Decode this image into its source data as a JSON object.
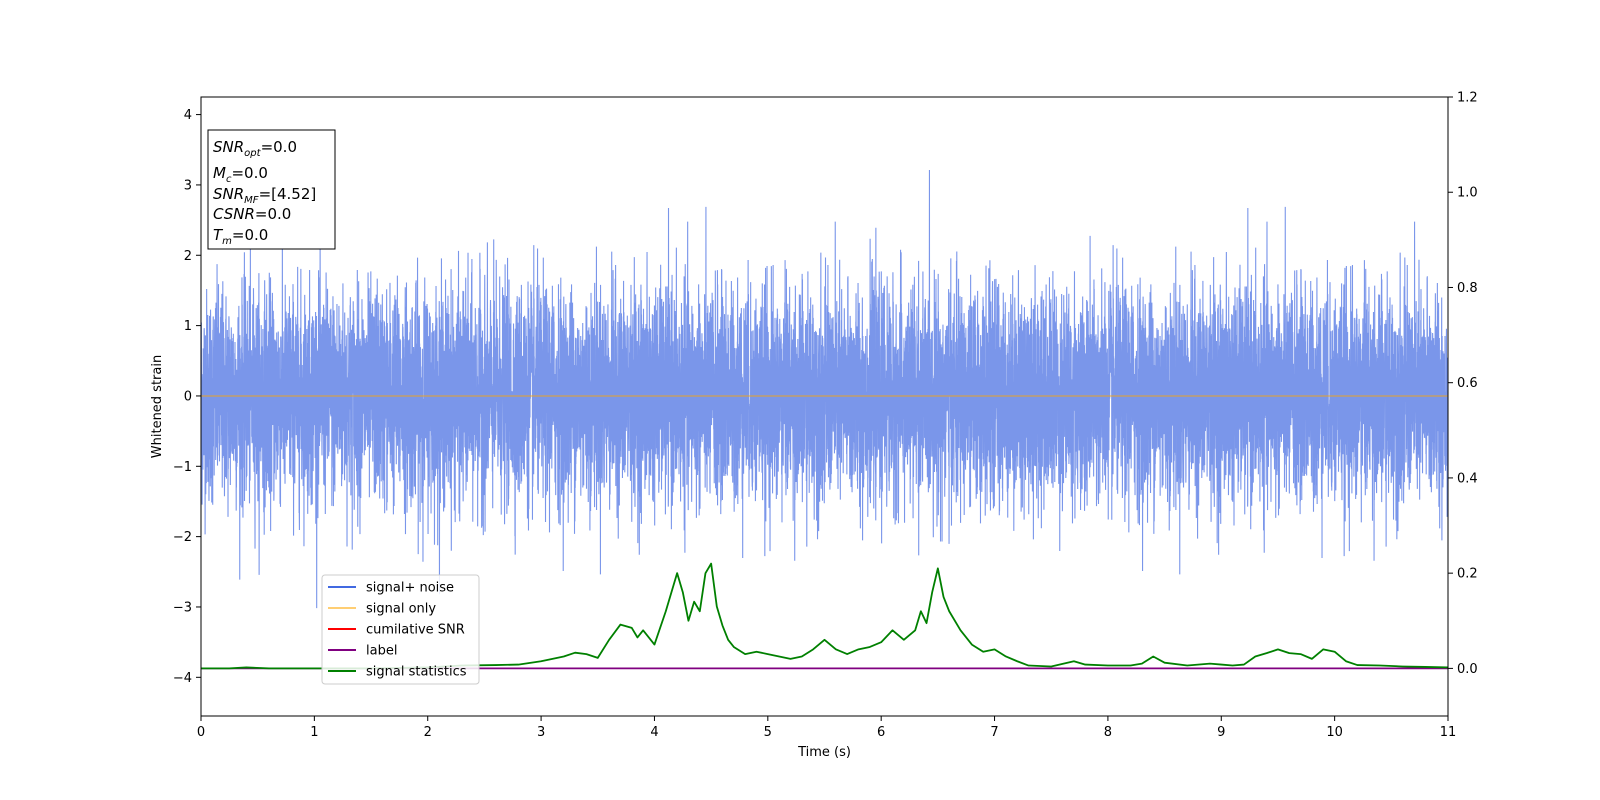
{
  "chart_data": {
    "type": "line",
    "xlabel": "Time (s)",
    "ylabel": "Whitened strain",
    "xlim": [
      0,
      11
    ],
    "ylim": [
      -4.55,
      4.25
    ],
    "y2lim": [
      -0.1,
      1.2
    ],
    "x_ticks": [
      0,
      1,
      2,
      3,
      4,
      5,
      6,
      7,
      8,
      9,
      10,
      11
    ],
    "y_ticks": [
      -4,
      -3,
      -2,
      -1,
      0,
      1,
      2,
      3,
      4
    ],
    "y2_ticks": [
      "0.0",
      "0.2",
      "0.4",
      "0.6",
      "0.8",
      "1.0",
      "1.2"
    ],
    "grid": false,
    "legend_position": "lower-left",
    "info_box": {
      "snr_opt": "=0.0",
      "mc": "=0.0",
      "snr_mf": "=[4.52]",
      "csnr": "=0.0",
      "tm": "=0.0"
    },
    "series": [
      {
        "name": "signal+ noise",
        "color": "#4169e1",
        "axis": "left",
        "style": "noise",
        "noise_std": 0.75,
        "envelope": [
          -3.3,
          3.85
        ],
        "sample_rate_hz": 1024
      },
      {
        "name": "signal only",
        "color": "#ffa500",
        "axis": "left",
        "x": [
          0,
          11
        ],
        "values": [
          0,
          0
        ]
      },
      {
        "name": "cumilative SNR",
        "color": "#ff0000",
        "axis": "right",
        "x": [],
        "values": []
      },
      {
        "name": "label",
        "color": "#800080",
        "axis": "right",
        "x": [
          0,
          11
        ],
        "values": [
          0,
          0
        ]
      },
      {
        "name": "signal statistics",
        "color": "#008000",
        "axis": "right",
        "x": [
          0,
          0.25,
          0.4,
          0.6,
          1.0,
          1.5,
          2.0,
          2.3,
          2.6,
          2.8,
          3.0,
          3.2,
          3.3,
          3.4,
          3.5,
          3.6,
          3.7,
          3.8,
          3.85,
          3.9,
          4.0,
          4.1,
          4.2,
          4.25,
          4.3,
          4.35,
          4.4,
          4.45,
          4.5,
          4.55,
          4.6,
          4.65,
          4.7,
          4.8,
          4.9,
          5.0,
          5.1,
          5.2,
          5.3,
          5.4,
          5.5,
          5.6,
          5.7,
          5.8,
          5.9,
          6.0,
          6.1,
          6.2,
          6.3,
          6.35,
          6.4,
          6.45,
          6.5,
          6.55,
          6.6,
          6.7,
          6.8,
          6.9,
          7.0,
          7.1,
          7.2,
          7.3,
          7.5,
          7.7,
          7.8,
          8.0,
          8.2,
          8.3,
          8.4,
          8.5,
          8.7,
          8.9,
          9.0,
          9.1,
          9.2,
          9.3,
          9.4,
          9.5,
          9.6,
          9.7,
          9.8,
          9.9,
          10.0,
          10.1,
          10.2,
          10.4,
          10.6,
          10.8,
          11.0
        ],
        "values": [
          0.0,
          0.0,
          0.002,
          0.0,
          0.0,
          0.0,
          0.002,
          0.006,
          0.007,
          0.008,
          0.015,
          0.025,
          0.033,
          0.03,
          0.022,
          0.06,
          0.092,
          0.085,
          0.065,
          0.08,
          0.05,
          0.12,
          0.2,
          0.16,
          0.1,
          0.14,
          0.12,
          0.2,
          0.22,
          0.13,
          0.09,
          0.06,
          0.045,
          0.03,
          0.035,
          0.03,
          0.025,
          0.02,
          0.025,
          0.04,
          0.06,
          0.04,
          0.03,
          0.04,
          0.045,
          0.055,
          0.08,
          0.06,
          0.08,
          0.12,
          0.095,
          0.16,
          0.21,
          0.15,
          0.12,
          0.08,
          0.05,
          0.035,
          0.04,
          0.025,
          0.015,
          0.006,
          0.004,
          0.015,
          0.008,
          0.006,
          0.006,
          0.01,
          0.025,
          0.012,
          0.006,
          0.01,
          0.008,
          0.006,
          0.008,
          0.025,
          0.032,
          0.04,
          0.032,
          0.03,
          0.02,
          0.04,
          0.035,
          0.015,
          0.007,
          0.006,
          0.004,
          0.003,
          0.002
        ]
      }
    ]
  }
}
